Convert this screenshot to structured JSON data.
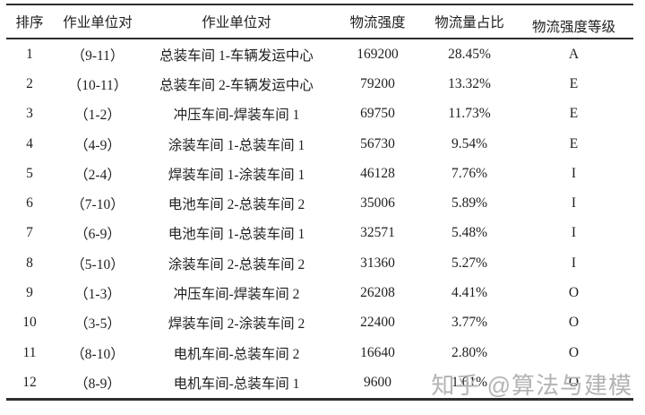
{
  "chart_data": {
    "type": "table",
    "columns": [
      "排序",
      "作业单位对",
      "作业单位对",
      "物流强度",
      "物流量占比",
      "物流强度等级"
    ],
    "rows": [
      [
        "1",
        "（9-11）",
        "总装车间 1-车辆发运中心",
        "169200",
        "28.45%",
        "A"
      ],
      [
        "2",
        "（10-11）",
        "总装车间 2-车辆发运中心",
        "79200",
        "13.32%",
        "E"
      ],
      [
        "3",
        "（1-2）",
        "冲压车间-焊装车间 1",
        "69750",
        "11.73%",
        "E"
      ],
      [
        "4",
        "（4-9）",
        "涂装车间 1-总装车间 1",
        "56730",
        "9.54%",
        "E"
      ],
      [
        "5",
        "（2-4）",
        "焊装车间 1-涂装车间 1",
        "46128",
        "7.76%",
        "I"
      ],
      [
        "6",
        "（7-10）",
        "电池车间 2-总装车间 2",
        "35006",
        "5.89%",
        "I"
      ],
      [
        "7",
        "（6-9）",
        "电池车间 1-总装车间 1",
        "32571",
        "5.48%",
        "I"
      ],
      [
        "8",
        "（5-10）",
        "涂装车间 2-总装车间 2",
        "31360",
        "5.27%",
        "I"
      ],
      [
        "9",
        "（1-3）",
        "冲压车间-焊装车间 2",
        "26208",
        "4.41%",
        "O"
      ],
      [
        "10",
        "（3-5）",
        "焊装车间 2-涂装车间 2",
        "22400",
        "3.77%",
        "O"
      ],
      [
        "11",
        "（8-10）",
        "电机车间-总装车间 2",
        "16640",
        "2.80%",
        "O"
      ],
      [
        "12",
        "（8-9）",
        "电机车间-总装车间 1",
        "9600",
        "1.61%",
        "O"
      ]
    ],
    "layout": {
      "style": "three-line booktabs table",
      "alignment": "all columns centered",
      "grid": "horizontal rules only (top, below header, bottom)"
    }
  },
  "watermark": {
    "text": "知乎 @算法与建模",
    "color": "#b3b3b3"
  },
  "colors": {
    "background": "#ffffff",
    "text": "#1f1f1f",
    "rule": "#2e2e2e"
  }
}
